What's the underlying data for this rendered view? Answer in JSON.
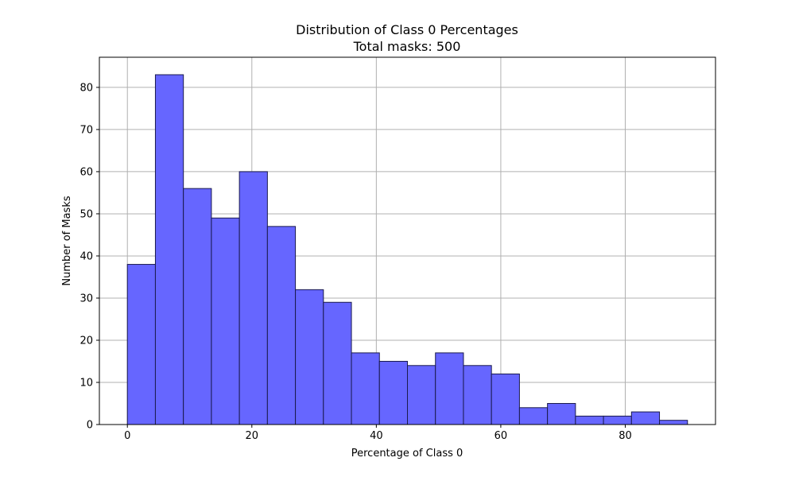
{
  "chart_data": {
    "type": "bar",
    "title": "Distribution of Class 0 Percentages",
    "subtitle": "Total masks: 500",
    "xlabel": "Percentage of Class 0",
    "ylabel": "Number of Masks",
    "xlim": [
      -4.5,
      94.5
    ],
    "ylim": [
      0,
      87.15
    ],
    "x_ticks": [
      0,
      20,
      40,
      60,
      80
    ],
    "y_ticks": [
      0,
      10,
      20,
      30,
      40,
      50,
      60,
      70,
      80
    ],
    "grid": true,
    "bin_edges": [
      0,
      4.5,
      9,
      13.5,
      18,
      22.5,
      27,
      31.5,
      36,
      40.5,
      45,
      49.5,
      54,
      58.5,
      63,
      67.5,
      72,
      76.5,
      81,
      85.5,
      90
    ],
    "values": [
      38,
      83,
      56,
      49,
      60,
      47,
      32,
      29,
      17,
      15,
      14,
      17,
      14,
      12,
      4,
      5,
      2,
      2,
      3,
      1
    ],
    "bar_color": "#6666ff",
    "edge_color": "#1a1a4d"
  }
}
